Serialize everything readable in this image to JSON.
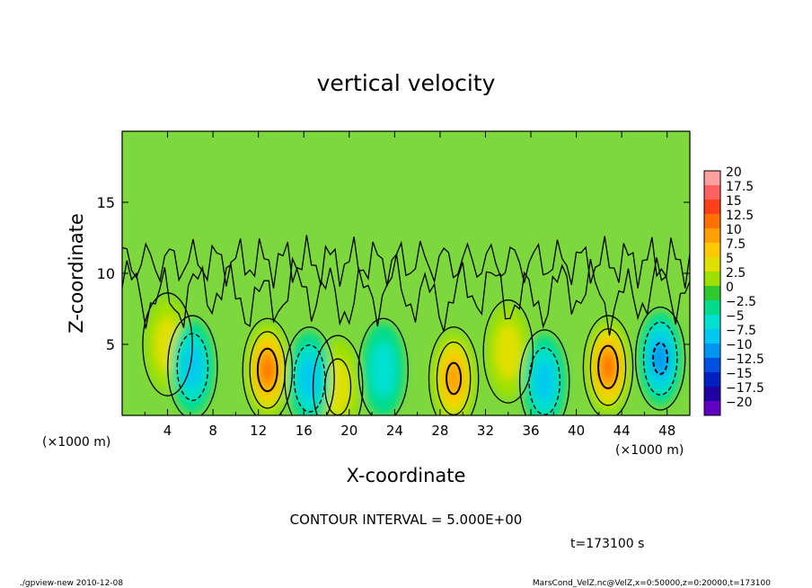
{
  "chart_data": {
    "type": "heatmap",
    "title": "vertical velocity",
    "xlabel": "X-coordinate",
    "ylabel": "Z-coordinate",
    "x_unit": "(×1000 m)",
    "y_unit": "(×1000 m)",
    "xlim": [
      0,
      50
    ],
    "ylim": [
      0,
      20
    ],
    "x_ticks": [
      "4",
      "8",
      "12",
      "16",
      "20",
      "24",
      "28",
      "32",
      "36",
      "40",
      "44",
      "48"
    ],
    "y_ticks": [
      "5",
      "10",
      "15"
    ],
    "colorbar": {
      "levels": [
        "20",
        "17.5",
        "15",
        "12.5",
        "10",
        "7.5",
        "5",
        "2.5",
        "0",
        "−2.5",
        "−5",
        "−7.5",
        "−10",
        "−12.5",
        "−15",
        "−17.5",
        "−20"
      ],
      "colors": [
        "#ffa0a0",
        "#ff6060",
        "#ff4018",
        "#ff7000",
        "#ffa000",
        "#ffc800",
        "#e0e000",
        "#a0e000",
        "#30c830",
        "#00dc8c",
        "#00e0d0",
        "#00c8f0",
        "#0096f0",
        "#0050e0",
        "#0020c0",
        "#2000a0",
        "#6000c0"
      ]
    },
    "features": [
      {
        "kind": "updraft",
        "x": 12.8,
        "z": 3.2,
        "peak": 12
      },
      {
        "kind": "updraft",
        "x": 29.2,
        "z": 2.6,
        "peak": 10
      },
      {
        "kind": "updraft",
        "x": 42.8,
        "z": 3.4,
        "peak": 13
      },
      {
        "kind": "updraft",
        "x": 4.0,
        "z": 5.0,
        "peak": 4
      },
      {
        "kind": "updraft",
        "x": 19.0,
        "z": 2.0,
        "peak": 5
      },
      {
        "kind": "updraft",
        "x": 34.0,
        "z": 4.5,
        "peak": 4
      },
      {
        "kind": "downdraft",
        "x": 6.2,
        "z": 3.4,
        "peak": -8
      },
      {
        "kind": "downdraft",
        "x": 16.5,
        "z": 2.6,
        "peak": -8
      },
      {
        "kind": "downdraft",
        "x": 23.0,
        "z": 3.2,
        "peak": -4
      },
      {
        "kind": "downdraft",
        "x": 37.2,
        "z": 2.4,
        "peak": -7
      },
      {
        "kind": "downdraft",
        "x": 47.4,
        "z": 4.0,
        "peak": -11
      }
    ],
    "contour_interval": "CONTOUR INTERVAL = 5.000E+00",
    "time": "t=173100 s"
  },
  "footer": {
    "left": "./gpview-new  2010-12-08",
    "right": "MarsCond_VelZ.nc@VelZ,x=0:50000,z=0:20000,t=173100"
  }
}
